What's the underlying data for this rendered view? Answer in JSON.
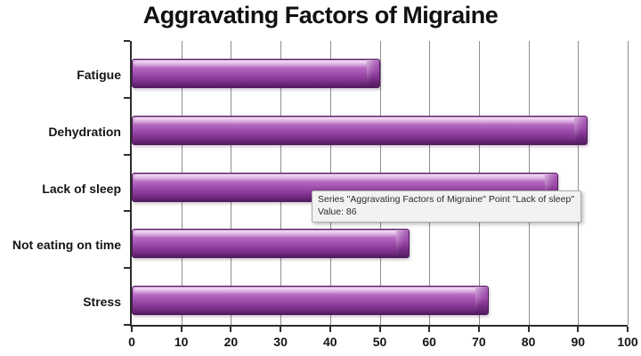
{
  "chart_data": {
    "type": "bar",
    "orientation": "horizontal",
    "title": "Aggravating Factors of Migraine",
    "categories": [
      "Fatigue",
      "Dehydration",
      "Lack of sleep",
      "Not eating on time",
      "Stress"
    ],
    "values": [
      50,
      92,
      86,
      56,
      72
    ],
    "xlabel": "",
    "ylabel": "",
    "xlim": [
      0,
      100
    ],
    "xticks": [
      0,
      10,
      20,
      30,
      40,
      50,
      60,
      70,
      80,
      90,
      100
    ],
    "grid": "vertical-gridlines-on",
    "legend": "none",
    "bar_color": "#9c4caa",
    "bar_highlight": "#e2b2e6",
    "bar_shadow": "#521a5f",
    "gridline_color": "#8f8f8f",
    "axis_color": "#2d2d2d"
  },
  "tooltip": {
    "line1": "Series \"Aggravating Factors of Migraine\" Point \"Lack of sleep\"",
    "line2": "Value: 86"
  }
}
